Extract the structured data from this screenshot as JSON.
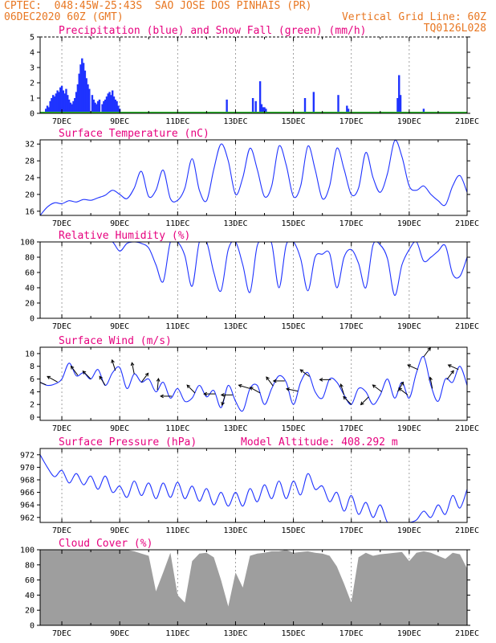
{
  "header": {
    "line1": "CPTEC:  048:45W-25:43S  SAO JOSE DOS PINHAIS (PR)",
    "line2_left": "06DEC2020 60Z (GMT)",
    "line2_right": "Vertical Grid Line: 60Z",
    "line3_right": "TQ0126L028"
  },
  "x_ticks": [
    "7DEC",
    "9DEC",
    "11DEC",
    "13DEC",
    "15DEC",
    "17DEC",
    "19DEC",
    "21DEC"
  ],
  "colors": {
    "series": "#1f33ff",
    "snow": "#2eb82e",
    "cloud": "#9e9e9e",
    "title": "#e6007e",
    "header": "#e87722"
  },
  "chart_data": [
    {
      "type": "bar",
      "title": "Precipitation (blue) and Snow Fall (green) (mm/h)",
      "ylim": [
        0,
        5
      ],
      "yticks": [
        0,
        1,
        2,
        3,
        4,
        5
      ],
      "x_start_day": 6.25,
      "series": [
        {
          "name": "Precipitation",
          "color": "#1f33ff",
          "x": [
            6.45,
            6.5,
            6.55,
            6.6,
            6.65,
            6.7,
            6.75,
            6.8,
            6.85,
            6.9,
            6.95,
            7.0,
            7.05,
            7.1,
            7.15,
            7.2,
            7.25,
            7.3,
            7.35,
            7.4,
            7.45,
            7.5,
            7.55,
            7.6,
            7.65,
            7.7,
            7.75,
            7.8,
            7.85,
            7.9,
            7.95,
            8.05,
            8.1,
            8.15,
            8.2,
            8.25,
            8.3,
            8.4,
            8.45,
            8.5,
            8.55,
            8.6,
            8.65,
            8.7,
            8.75,
            8.8,
            8.85,
            8.9,
            8.95,
            9.0,
            12.7,
            13.6,
            13.7,
            13.85,
            13.9,
            13.95,
            14.0,
            14.05,
            15.4,
            15.7,
            16.55,
            16.85,
            16.9,
            18.6,
            18.65,
            18.7,
            19.5
          ],
          "values": [
            0.3,
            0.5,
            0.4,
            0.8,
            1.0,
            1.2,
            1.1,
            1.3,
            1.5,
            1.4,
            1.7,
            1.8,
            1.5,
            1.3,
            1.6,
            1.2,
            0.9,
            0.7,
            0.6,
            0.8,
            1.0,
            1.4,
            1.9,
            2.6,
            3.2,
            3.6,
            3.3,
            2.8,
            2.3,
            1.9,
            1.6,
            1.2,
            0.9,
            0.7,
            0.6,
            0.8,
            0.9,
            0.6,
            0.8,
            0.9,
            1.1,
            1.3,
            1.4,
            1.2,
            1.5,
            1.1,
            0.9,
            0.8,
            0.5,
            0.3,
            0.9,
            1.0,
            0.8,
            2.1,
            0.6,
            0.4,
            0.4,
            0.3,
            1.0,
            1.4,
            1.2,
            0.5,
            0.3,
            1.0,
            2.5,
            1.2,
            0.3
          ]
        },
        {
          "name": "Snow Fall",
          "color": "#2eb82e",
          "values": [
            0
          ]
        }
      ]
    },
    {
      "type": "line",
      "title": "Surface Temperature (nC)",
      "ylim": [
        15,
        33
      ],
      "yticks": [
        16,
        20,
        24,
        28,
        32
      ],
      "x": [
        6.25,
        6.5,
        6.75,
        7.0,
        7.25,
        7.5,
        7.75,
        8.0,
        8.25,
        8.5,
        8.75,
        9.0,
        9.25,
        9.5,
        9.75,
        10.0,
        10.25,
        10.5,
        10.75,
        11.0,
        11.25,
        11.5,
        11.75,
        12.0,
        12.25,
        12.5,
        12.75,
        13.0,
        13.25,
        13.5,
        13.75,
        14.0,
        14.25,
        14.5,
        14.75,
        15.0,
        15.25,
        15.5,
        15.75,
        16.0,
        16.25,
        16.5,
        16.75,
        17.0,
        17.25,
        17.5,
        17.75,
        18.0,
        18.25,
        18.5,
        18.75,
        19.0,
        19.25,
        19.5,
        19.75,
        20.0,
        20.25,
        20.5,
        20.75,
        21.0
      ],
      "values": [
        15.0,
        17.0,
        18.0,
        17.8,
        18.5,
        18.2,
        18.8,
        18.6,
        19.2,
        19.8,
        21.0,
        20.0,
        19.0,
        21.5,
        25.5,
        19.5,
        21.0,
        25.8,
        19.0,
        18.6,
        21.5,
        28.5,
        21.0,
        18.5,
        26.0,
        32.0,
        28.0,
        20.0,
        24.0,
        31.0,
        26.0,
        19.5,
        22.0,
        31.5,
        27.0,
        19.5,
        22.0,
        31.5,
        26.0,
        19.0,
        22.0,
        31.0,
        26.0,
        20.0,
        21.5,
        30.0,
        24.0,
        20.5,
        25.0,
        32.8,
        29.0,
        22.0,
        21.0,
        22.0,
        20.0,
        18.5,
        17.5,
        22.0,
        24.5,
        20.5
      ]
    },
    {
      "type": "line",
      "title": "Relative Humidity (%)",
      "ylim": [
        0,
        100
      ],
      "yticks": [
        0,
        20,
        40,
        60,
        80,
        100
      ],
      "x": [
        6.25,
        6.5,
        6.75,
        7.0,
        7.25,
        7.5,
        7.75,
        8.0,
        8.25,
        8.5,
        8.75,
        9.0,
        9.25,
        9.5,
        9.75,
        10.0,
        10.25,
        10.5,
        10.75,
        11.0,
        11.25,
        11.5,
        11.75,
        12.0,
        12.25,
        12.5,
        12.75,
        13.0,
        13.25,
        13.5,
        13.75,
        14.0,
        14.25,
        14.5,
        14.75,
        15.0,
        15.25,
        15.5,
        15.75,
        16.0,
        16.25,
        16.5,
        16.75,
        17.0,
        17.25,
        17.5,
        17.75,
        18.0,
        18.25,
        18.5,
        18.75,
        19.0,
        19.25,
        19.5,
        19.75,
        20.0,
        20.25,
        20.5,
        20.75,
        21.0
      ],
      "values": [
        100,
        100,
        100,
        100,
        100,
        100,
        100,
        100,
        100,
        100,
        100,
        88,
        98,
        100,
        98,
        92,
        70,
        48,
        100,
        100,
        82,
        42,
        100,
        100,
        60,
        36,
        90,
        100,
        70,
        34,
        95,
        100,
        98,
        40,
        96,
        100,
        78,
        36,
        80,
        84,
        85,
        40,
        80,
        90,
        72,
        40,
        96,
        96,
        78,
        30,
        70,
        90,
        100,
        75,
        80,
        88,
        95,
        58,
        55,
        80
      ]
    },
    {
      "type": "line",
      "title": "Surface Wind (m/s)",
      "ylim": [
        -0.5,
        11
      ],
      "yticks": [
        0,
        2,
        4,
        6,
        8,
        10
      ],
      "x": [
        6.25,
        6.5,
        6.75,
        7.0,
        7.25,
        7.5,
        7.75,
        8.0,
        8.25,
        8.5,
        8.75,
        9.0,
        9.25,
        9.5,
        9.75,
        10.0,
        10.25,
        10.5,
        10.75,
        11.0,
        11.25,
        11.5,
        11.75,
        12.0,
        12.25,
        12.5,
        12.75,
        13.0,
        13.25,
        13.5,
        13.75,
        14.0,
        14.25,
        14.5,
        14.75,
        15.0,
        15.25,
        15.5,
        15.75,
        16.0,
        16.25,
        16.5,
        16.75,
        17.0,
        17.25,
        17.5,
        17.75,
        18.0,
        18.25,
        18.5,
        18.75,
        19.0,
        19.25,
        19.5,
        19.75,
        20.0,
        20.25,
        20.5,
        20.75,
        21.0
      ],
      "values": [
        5.5,
        5.0,
        5.2,
        6.0,
        8.5,
        6.5,
        7.0,
        6.0,
        7.5,
        5.0,
        7.0,
        7.8,
        4.5,
        6.8,
        5.5,
        6.0,
        4.0,
        5.5,
        3.0,
        4.5,
        2.5,
        3.0,
        5.0,
        3.2,
        4.2,
        1.5,
        5.0,
        2.5,
        1.0,
        4.5,
        5.0,
        2.0,
        4.5,
        6.5,
        5.5,
        2.0,
        5.5,
        7.0,
        4.0,
        3.0,
        6.0,
        5.5,
        3.5,
        2.0,
        4.5,
        4.0,
        2.0,
        3.5,
        6.0,
        3.0,
        5.5,
        3.0,
        7.0,
        9.5,
        5.0,
        2.5,
        6.0,
        5.5,
        8.0,
        5.0
      ],
      "arrows": [
        {
          "x": 6.45,
          "u": -1.0,
          "v": 0.4
        },
        {
          "x": 6.85,
          "u": -0.9,
          "v": 0.5
        },
        {
          "x": 7.55,
          "u": -0.6,
          "v": 0.8
        },
        {
          "x": 8.0,
          "u": -0.7,
          "v": 0.7
        },
        {
          "x": 8.5,
          "u": -0.5,
          "v": 0.8
        },
        {
          "x": 8.85,
          "u": -0.3,
          "v": 0.95
        },
        {
          "x": 9.5,
          "u": -0.2,
          "v": 1.0
        },
        {
          "x": 9.75,
          "u": 0.6,
          "v": 0.8
        },
        {
          "x": 10.3,
          "u": 0.1,
          "v": 1.0
        },
        {
          "x": 10.8,
          "u": -1.0,
          "v": 0.0
        },
        {
          "x": 11.6,
          "u": -0.7,
          "v": 0.7
        },
        {
          "x": 12.3,
          "u": -1.0,
          "v": 0.0
        },
        {
          "x": 12.65,
          "u": -0.3,
          "v": -0.95
        },
        {
          "x": 12.9,
          "u": -1.0,
          "v": 0.0
        },
        {
          "x": 13.5,
          "u": -1.0,
          "v": 0.3
        },
        {
          "x": 13.85,
          "u": -0.9,
          "v": 0.5
        },
        {
          "x": 14.3,
          "u": -0.6,
          "v": 0.8
        },
        {
          "x": 14.7,
          "u": -1.0,
          "v": 0.0
        },
        {
          "x": 15.15,
          "u": -1.0,
          "v": 0.2
        },
        {
          "x": 15.55,
          "u": -0.8,
          "v": 0.6
        },
        {
          "x": 16.3,
          "u": -1.0,
          "v": 0.0
        },
        {
          "x": 16.75,
          "u": -0.3,
          "v": 0.95
        },
        {
          "x": 17.0,
          "u": -0.7,
          "v": 0.7
        },
        {
          "x": 17.6,
          "u": -0.7,
          "v": -0.7
        },
        {
          "x": 18.05,
          "u": -0.8,
          "v": 0.6
        },
        {
          "x": 18.6,
          "u": 0.5,
          "v": 0.85
        },
        {
          "x": 18.95,
          "u": -0.8,
          "v": 0.6
        },
        {
          "x": 19.3,
          "u": -0.9,
          "v": 0.4
        },
        {
          "x": 19.5,
          "u": 0.6,
          "v": 0.8
        },
        {
          "x": 19.8,
          "u": -0.2,
          "v": 1.0
        },
        {
          "x": 20.3,
          "u": 0.6,
          "v": 0.8
        },
        {
          "x": 20.7,
          "u": -0.9,
          "v": 0.4
        }
      ]
    },
    {
      "type": "line",
      "title": "Surface Pressure (hPa)",
      "annotation": "Model Altitude: 408.292 m",
      "ylim": [
        961.2,
        973
      ],
      "yticks": [
        962,
        964,
        966,
        968,
        970,
        972
      ],
      "x": [
        6.25,
        6.5,
        6.75,
        7.0,
        7.25,
        7.5,
        7.75,
        8.0,
        8.25,
        8.5,
        8.75,
        9.0,
        9.25,
        9.5,
        9.75,
        10.0,
        10.25,
        10.5,
        10.75,
        11.0,
        11.25,
        11.5,
        11.75,
        12.0,
        12.25,
        12.5,
        12.75,
        13.0,
        13.25,
        13.5,
        13.75,
        14.0,
        14.25,
        14.5,
        14.75,
        15.0,
        15.25,
        15.5,
        15.75,
        16.0,
        16.25,
        16.5,
        16.75,
        17.0,
        17.25,
        17.5,
        17.75,
        18.0,
        18.25,
        18.5,
        18.75,
        19.0,
        19.25,
        19.5,
        19.75,
        20.0,
        20.25,
        20.5,
        20.75,
        21.0
      ],
      "values": [
        972.0,
        970.0,
        968.5,
        969.5,
        967.5,
        969.0,
        967.2,
        968.6,
        966.5,
        968.6,
        966.0,
        967.0,
        965.2,
        967.8,
        965.5,
        967.5,
        965.0,
        967.5,
        965.2,
        967.6,
        965.0,
        967.0,
        964.6,
        966.6,
        964.0,
        966.0,
        963.8,
        966.0,
        963.8,
        966.6,
        964.5,
        967.2,
        965.0,
        967.8,
        965.0,
        967.8,
        965.6,
        969.0,
        966.5,
        967.0,
        964.5,
        966.0,
        963.0,
        965.5,
        962.5,
        964.4,
        962.0,
        964.0,
        961.2,
        961.2,
        961.2,
        961.2,
        961.6,
        963.0,
        962.0,
        964.0,
        962.5,
        965.5,
        963.5,
        966.5
      ]
    },
    {
      "type": "area",
      "title": "Cloud Cover (%)",
      "ylim": [
        0,
        100
      ],
      "yticks": [
        0,
        20,
        40,
        60,
        80,
        100
      ],
      "x": [
        6.25,
        6.5,
        6.75,
        7.0,
        7.25,
        7.5,
        7.75,
        8.0,
        8.25,
        8.5,
        8.75,
        9.0,
        9.25,
        9.5,
        9.75,
        10.0,
        10.25,
        10.5,
        10.75,
        11.0,
        11.25,
        11.5,
        11.75,
        12.0,
        12.25,
        12.5,
        12.75,
        13.0,
        13.25,
        13.5,
        13.75,
        14.0,
        14.25,
        14.5,
        14.75,
        15.0,
        15.25,
        15.5,
        15.75,
        16.0,
        16.25,
        16.5,
        16.75,
        17.0,
        17.25,
        17.5,
        17.75,
        18.0,
        18.25,
        18.5,
        18.75,
        19.0,
        19.25,
        19.5,
        19.75,
        20.0,
        20.25,
        20.5,
        20.75,
        21.0
      ],
      "values": [
        100,
        100,
        100,
        100,
        100,
        100,
        100,
        100,
        100,
        100,
        100,
        100,
        100,
        98,
        95,
        92,
        45,
        70,
        96,
        40,
        30,
        85,
        95,
        96,
        90,
        60,
        25,
        70,
        50,
        92,
        95,
        96,
        98,
        98,
        100,
        96,
        97,
        98,
        96,
        95,
        92,
        78,
        55,
        30,
        90,
        96,
        92,
        94,
        95,
        96,
        97,
        85,
        96,
        98,
        96,
        92,
        88,
        96,
        94,
        75
      ]
    }
  ]
}
